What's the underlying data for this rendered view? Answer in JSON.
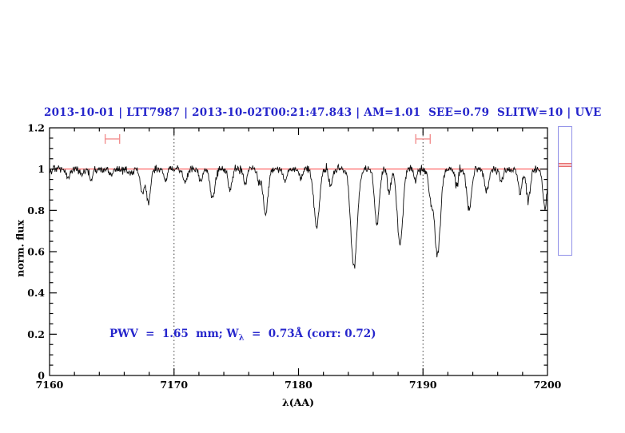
{
  "title": {
    "text": "2013-10-01 | LTT7987 | 2013-10-02T00:21:47.843 | AM=1.01  SEE=0.79  SLITW=10 | UVE",
    "color": "#2626cc"
  },
  "annotation": {
    "part1": "PWV  =  1.65  mm; W",
    "sub": "λ",
    "part2": "  =  0.73Å (corr: 0.72)",
    "color": "#2626cc"
  },
  "axes": {
    "x": {
      "label": "λ(AA)"
    },
    "y": {
      "label": "norm. flux"
    }
  },
  "side_gauge": {
    "border_color": "#9090e8",
    "marker_line_color": "#e86f6f",
    "marker_fill_color": "#f8c3c3"
  },
  "chart_data": {
    "type": "line",
    "title": "2013-10-01 | LTT7987 | 2013-10-02T00:21:47.843 | AM=1.01  SEE=0.79  SLITW=10 | UVE",
    "xlabel": "λ(AA)",
    "ylabel": "norm. flux",
    "xlim": [
      7160,
      7200
    ],
    "ylim": [
      0,
      1.2
    ],
    "grid": "off",
    "legend": "none",
    "x_ticks": {
      "major_step": 10,
      "minor_step": 2,
      "major_labels": [
        "7160",
        "7170",
        "7180",
        "7190",
        "7200"
      ]
    },
    "y_ticks": {
      "major_step": 0.2,
      "minor_step": 0.05,
      "major_labels": [
        "0",
        "0.2",
        "0.4",
        "0.6",
        "0.8",
        "1",
        "1.2"
      ]
    },
    "line_color": "#101010",
    "continuum_line": {
      "y": 1.0,
      "color": "#ff4343"
    },
    "dotted_verticals": {
      "x": [
        7170,
        7190
      ],
      "color": "#3c3c3c"
    },
    "range_markers": [
      {
        "x_center": 7165.05,
        "x_half_width": 0.58,
        "y": 1.146,
        "color": "#f29090"
      },
      {
        "x_center": 7190.0,
        "x_half_width": 0.58,
        "y": 1.146,
        "color": "#f29090"
      }
    ],
    "spectrum": {
      "continuum_level": 1.0,
      "noise_sigma": 0.0095,
      "sample_step": 0.04,
      "seed": 20131002,
      "absorption_lines": [
        {
          "center": 7161.5,
          "depth": 0.04,
          "sigma": 0.15
        },
        {
          "center": 7162.6,
          "depth": 0.03,
          "sigma": 0.12
        },
        {
          "center": 7163.3,
          "depth": 0.045,
          "sigma": 0.14
        },
        {
          "center": 7164.9,
          "depth": 0.035,
          "sigma": 0.13
        },
        {
          "center": 7166.5,
          "depth": 0.03,
          "sigma": 0.12
        },
        {
          "center": 7167.45,
          "depth": 0.12,
          "sigma": 0.16
        },
        {
          "center": 7167.95,
          "depth": 0.165,
          "sigma": 0.16
        },
        {
          "center": 7169.3,
          "depth": 0.05,
          "sigma": 0.13
        },
        {
          "center": 7170.9,
          "depth": 0.07,
          "sigma": 0.16
        },
        {
          "center": 7172.15,
          "depth": 0.06,
          "sigma": 0.14
        },
        {
          "center": 7173.1,
          "depth": 0.14,
          "sigma": 0.2
        },
        {
          "center": 7174.5,
          "depth": 0.1,
          "sigma": 0.17
        },
        {
          "center": 7175.7,
          "depth": 0.07,
          "sigma": 0.14
        },
        {
          "center": 7176.8,
          "depth": 0.06,
          "sigma": 0.13
        },
        {
          "center": 7177.35,
          "depth": 0.215,
          "sigma": 0.2
        },
        {
          "center": 7178.9,
          "depth": 0.06,
          "sigma": 0.14
        },
        {
          "center": 7180.2,
          "depth": 0.045,
          "sigma": 0.12
        },
        {
          "center": 7181.45,
          "depth": 0.28,
          "sigma": 0.22
        },
        {
          "center": 7182.6,
          "depth": 0.08,
          "sigma": 0.14
        },
        {
          "center": 7184.45,
          "depth": 0.47,
          "sigma": 0.26
        },
        {
          "center": 7186.3,
          "depth": 0.27,
          "sigma": 0.19
        },
        {
          "center": 7187.3,
          "depth": 0.12,
          "sigma": 0.14
        },
        {
          "center": 7188.15,
          "depth": 0.37,
          "sigma": 0.22
        },
        {
          "center": 7189.4,
          "depth": 0.06,
          "sigma": 0.12
        },
        {
          "center": 7190.6,
          "depth": 0.12,
          "sigma": 0.15
        },
        {
          "center": 7191.15,
          "depth": 0.42,
          "sigma": 0.24
        },
        {
          "center": 7192.7,
          "depth": 0.08,
          "sigma": 0.14
        },
        {
          "center": 7193.7,
          "depth": 0.2,
          "sigma": 0.19
        },
        {
          "center": 7195.1,
          "depth": 0.11,
          "sigma": 0.17
        },
        {
          "center": 7196.3,
          "depth": 0.06,
          "sigma": 0.13
        },
        {
          "center": 7197.8,
          "depth": 0.12,
          "sigma": 0.15
        },
        {
          "center": 7198.45,
          "depth": 0.15,
          "sigma": 0.16
        },
        {
          "center": 7199.8,
          "depth": 0.18,
          "sigma": 0.17
        }
      ]
    },
    "annotation": "PWV = 1.65 mm; W_λ = 0.73Å (corr: 0.72)"
  }
}
